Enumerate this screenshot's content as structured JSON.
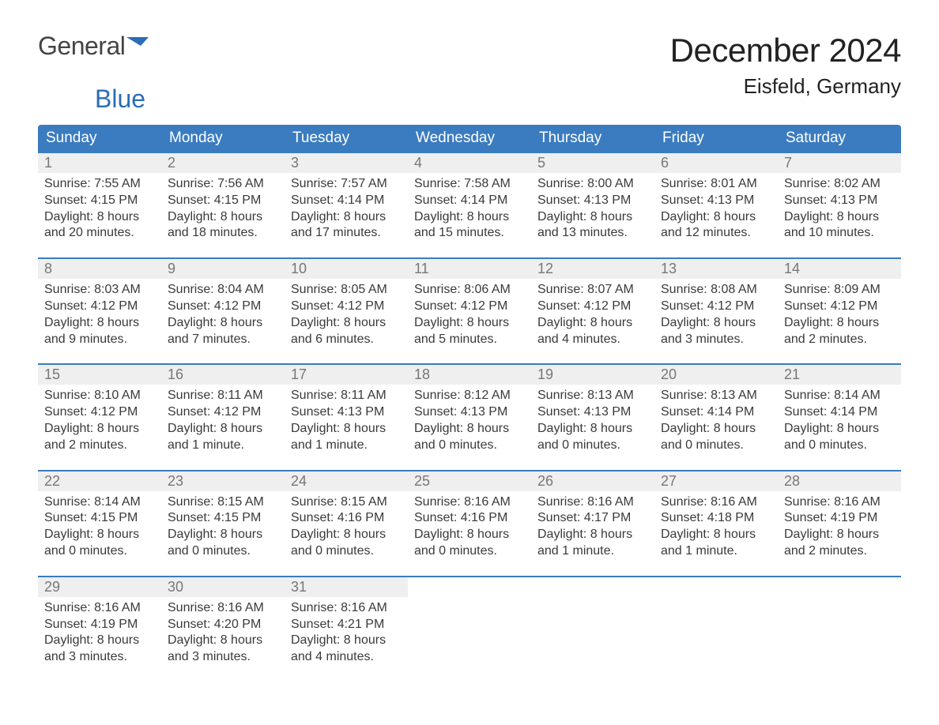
{
  "brand": {
    "general": "General",
    "blue": "Blue"
  },
  "title": "December 2024",
  "location": "Eisfeld, Germany",
  "colors": {
    "header_bg": "#3b7cc0",
    "header_text": "#ffffff",
    "daynum_bg": "#efefef",
    "daynum_text": "#777777",
    "body_text": "#3a3a3a",
    "row_border": "#3b7cc0",
    "page_bg": "#ffffff",
    "logo_general": "#444444",
    "logo_blue": "#2a6db8"
  },
  "fonts": {
    "title_size_pt": 32,
    "location_size_pt": 20,
    "weekday_size_pt": 14,
    "cell_size_pt": 12,
    "family": "Arial"
  },
  "weekdays": [
    "Sunday",
    "Monday",
    "Tuesday",
    "Wednesday",
    "Thursday",
    "Friday",
    "Saturday"
  ],
  "labels": {
    "sunrise": "Sunrise:",
    "sunset": "Sunset:",
    "daylight": "Daylight:"
  },
  "weeks": [
    [
      {
        "day": "1",
        "sunrise": "7:55 AM",
        "sunset": "4:15 PM",
        "daylight1": "8 hours",
        "daylight2": "and 20 minutes."
      },
      {
        "day": "2",
        "sunrise": "7:56 AM",
        "sunset": "4:15 PM",
        "daylight1": "8 hours",
        "daylight2": "and 18 minutes."
      },
      {
        "day": "3",
        "sunrise": "7:57 AM",
        "sunset": "4:14 PM",
        "daylight1": "8 hours",
        "daylight2": "and 17 minutes."
      },
      {
        "day": "4",
        "sunrise": "7:58 AM",
        "sunset": "4:14 PM",
        "daylight1": "8 hours",
        "daylight2": "and 15 minutes."
      },
      {
        "day": "5",
        "sunrise": "8:00 AM",
        "sunset": "4:13 PM",
        "daylight1": "8 hours",
        "daylight2": "and 13 minutes."
      },
      {
        "day": "6",
        "sunrise": "8:01 AM",
        "sunset": "4:13 PM",
        "daylight1": "8 hours",
        "daylight2": "and 12 minutes."
      },
      {
        "day": "7",
        "sunrise": "8:02 AM",
        "sunset": "4:13 PM",
        "daylight1": "8 hours",
        "daylight2": "and 10 minutes."
      }
    ],
    [
      {
        "day": "8",
        "sunrise": "8:03 AM",
        "sunset": "4:12 PM",
        "daylight1": "8 hours",
        "daylight2": "and 9 minutes."
      },
      {
        "day": "9",
        "sunrise": "8:04 AM",
        "sunset": "4:12 PM",
        "daylight1": "8 hours",
        "daylight2": "and 7 minutes."
      },
      {
        "day": "10",
        "sunrise": "8:05 AM",
        "sunset": "4:12 PM",
        "daylight1": "8 hours",
        "daylight2": "and 6 minutes."
      },
      {
        "day": "11",
        "sunrise": "8:06 AM",
        "sunset": "4:12 PM",
        "daylight1": "8 hours",
        "daylight2": "and 5 minutes."
      },
      {
        "day": "12",
        "sunrise": "8:07 AM",
        "sunset": "4:12 PM",
        "daylight1": "8 hours",
        "daylight2": "and 4 minutes."
      },
      {
        "day": "13",
        "sunrise": "8:08 AM",
        "sunset": "4:12 PM",
        "daylight1": "8 hours",
        "daylight2": "and 3 minutes."
      },
      {
        "day": "14",
        "sunrise": "8:09 AM",
        "sunset": "4:12 PM",
        "daylight1": "8 hours",
        "daylight2": "and 2 minutes."
      }
    ],
    [
      {
        "day": "15",
        "sunrise": "8:10 AM",
        "sunset": "4:12 PM",
        "daylight1": "8 hours",
        "daylight2": "and 2 minutes."
      },
      {
        "day": "16",
        "sunrise": "8:11 AM",
        "sunset": "4:12 PM",
        "daylight1": "8 hours",
        "daylight2": "and 1 minute."
      },
      {
        "day": "17",
        "sunrise": "8:11 AM",
        "sunset": "4:13 PM",
        "daylight1": "8 hours",
        "daylight2": "and 1 minute."
      },
      {
        "day": "18",
        "sunrise": "8:12 AM",
        "sunset": "4:13 PM",
        "daylight1": "8 hours",
        "daylight2": "and 0 minutes."
      },
      {
        "day": "19",
        "sunrise": "8:13 AM",
        "sunset": "4:13 PM",
        "daylight1": "8 hours",
        "daylight2": "and 0 minutes."
      },
      {
        "day": "20",
        "sunrise": "8:13 AM",
        "sunset": "4:14 PM",
        "daylight1": "8 hours",
        "daylight2": "and 0 minutes."
      },
      {
        "day": "21",
        "sunrise": "8:14 AM",
        "sunset": "4:14 PM",
        "daylight1": "8 hours",
        "daylight2": "and 0 minutes."
      }
    ],
    [
      {
        "day": "22",
        "sunrise": "8:14 AM",
        "sunset": "4:15 PM",
        "daylight1": "8 hours",
        "daylight2": "and 0 minutes."
      },
      {
        "day": "23",
        "sunrise": "8:15 AM",
        "sunset": "4:15 PM",
        "daylight1": "8 hours",
        "daylight2": "and 0 minutes."
      },
      {
        "day": "24",
        "sunrise": "8:15 AM",
        "sunset": "4:16 PM",
        "daylight1": "8 hours",
        "daylight2": "and 0 minutes."
      },
      {
        "day": "25",
        "sunrise": "8:16 AM",
        "sunset": "4:16 PM",
        "daylight1": "8 hours",
        "daylight2": "and 0 minutes."
      },
      {
        "day": "26",
        "sunrise": "8:16 AM",
        "sunset": "4:17 PM",
        "daylight1": "8 hours",
        "daylight2": "and 1 minute."
      },
      {
        "day": "27",
        "sunrise": "8:16 AM",
        "sunset": "4:18 PM",
        "daylight1": "8 hours",
        "daylight2": "and 1 minute."
      },
      {
        "day": "28",
        "sunrise": "8:16 AM",
        "sunset": "4:19 PM",
        "daylight1": "8 hours",
        "daylight2": "and 2 minutes."
      }
    ],
    [
      {
        "day": "29",
        "sunrise": "8:16 AM",
        "sunset": "4:19 PM",
        "daylight1": "8 hours",
        "daylight2": "and 3 minutes."
      },
      {
        "day": "30",
        "sunrise": "8:16 AM",
        "sunset": "4:20 PM",
        "daylight1": "8 hours",
        "daylight2": "and 3 minutes."
      },
      {
        "day": "31",
        "sunrise": "8:16 AM",
        "sunset": "4:21 PM",
        "daylight1": "8 hours",
        "daylight2": "and 4 minutes."
      },
      null,
      null,
      null,
      null
    ]
  ]
}
